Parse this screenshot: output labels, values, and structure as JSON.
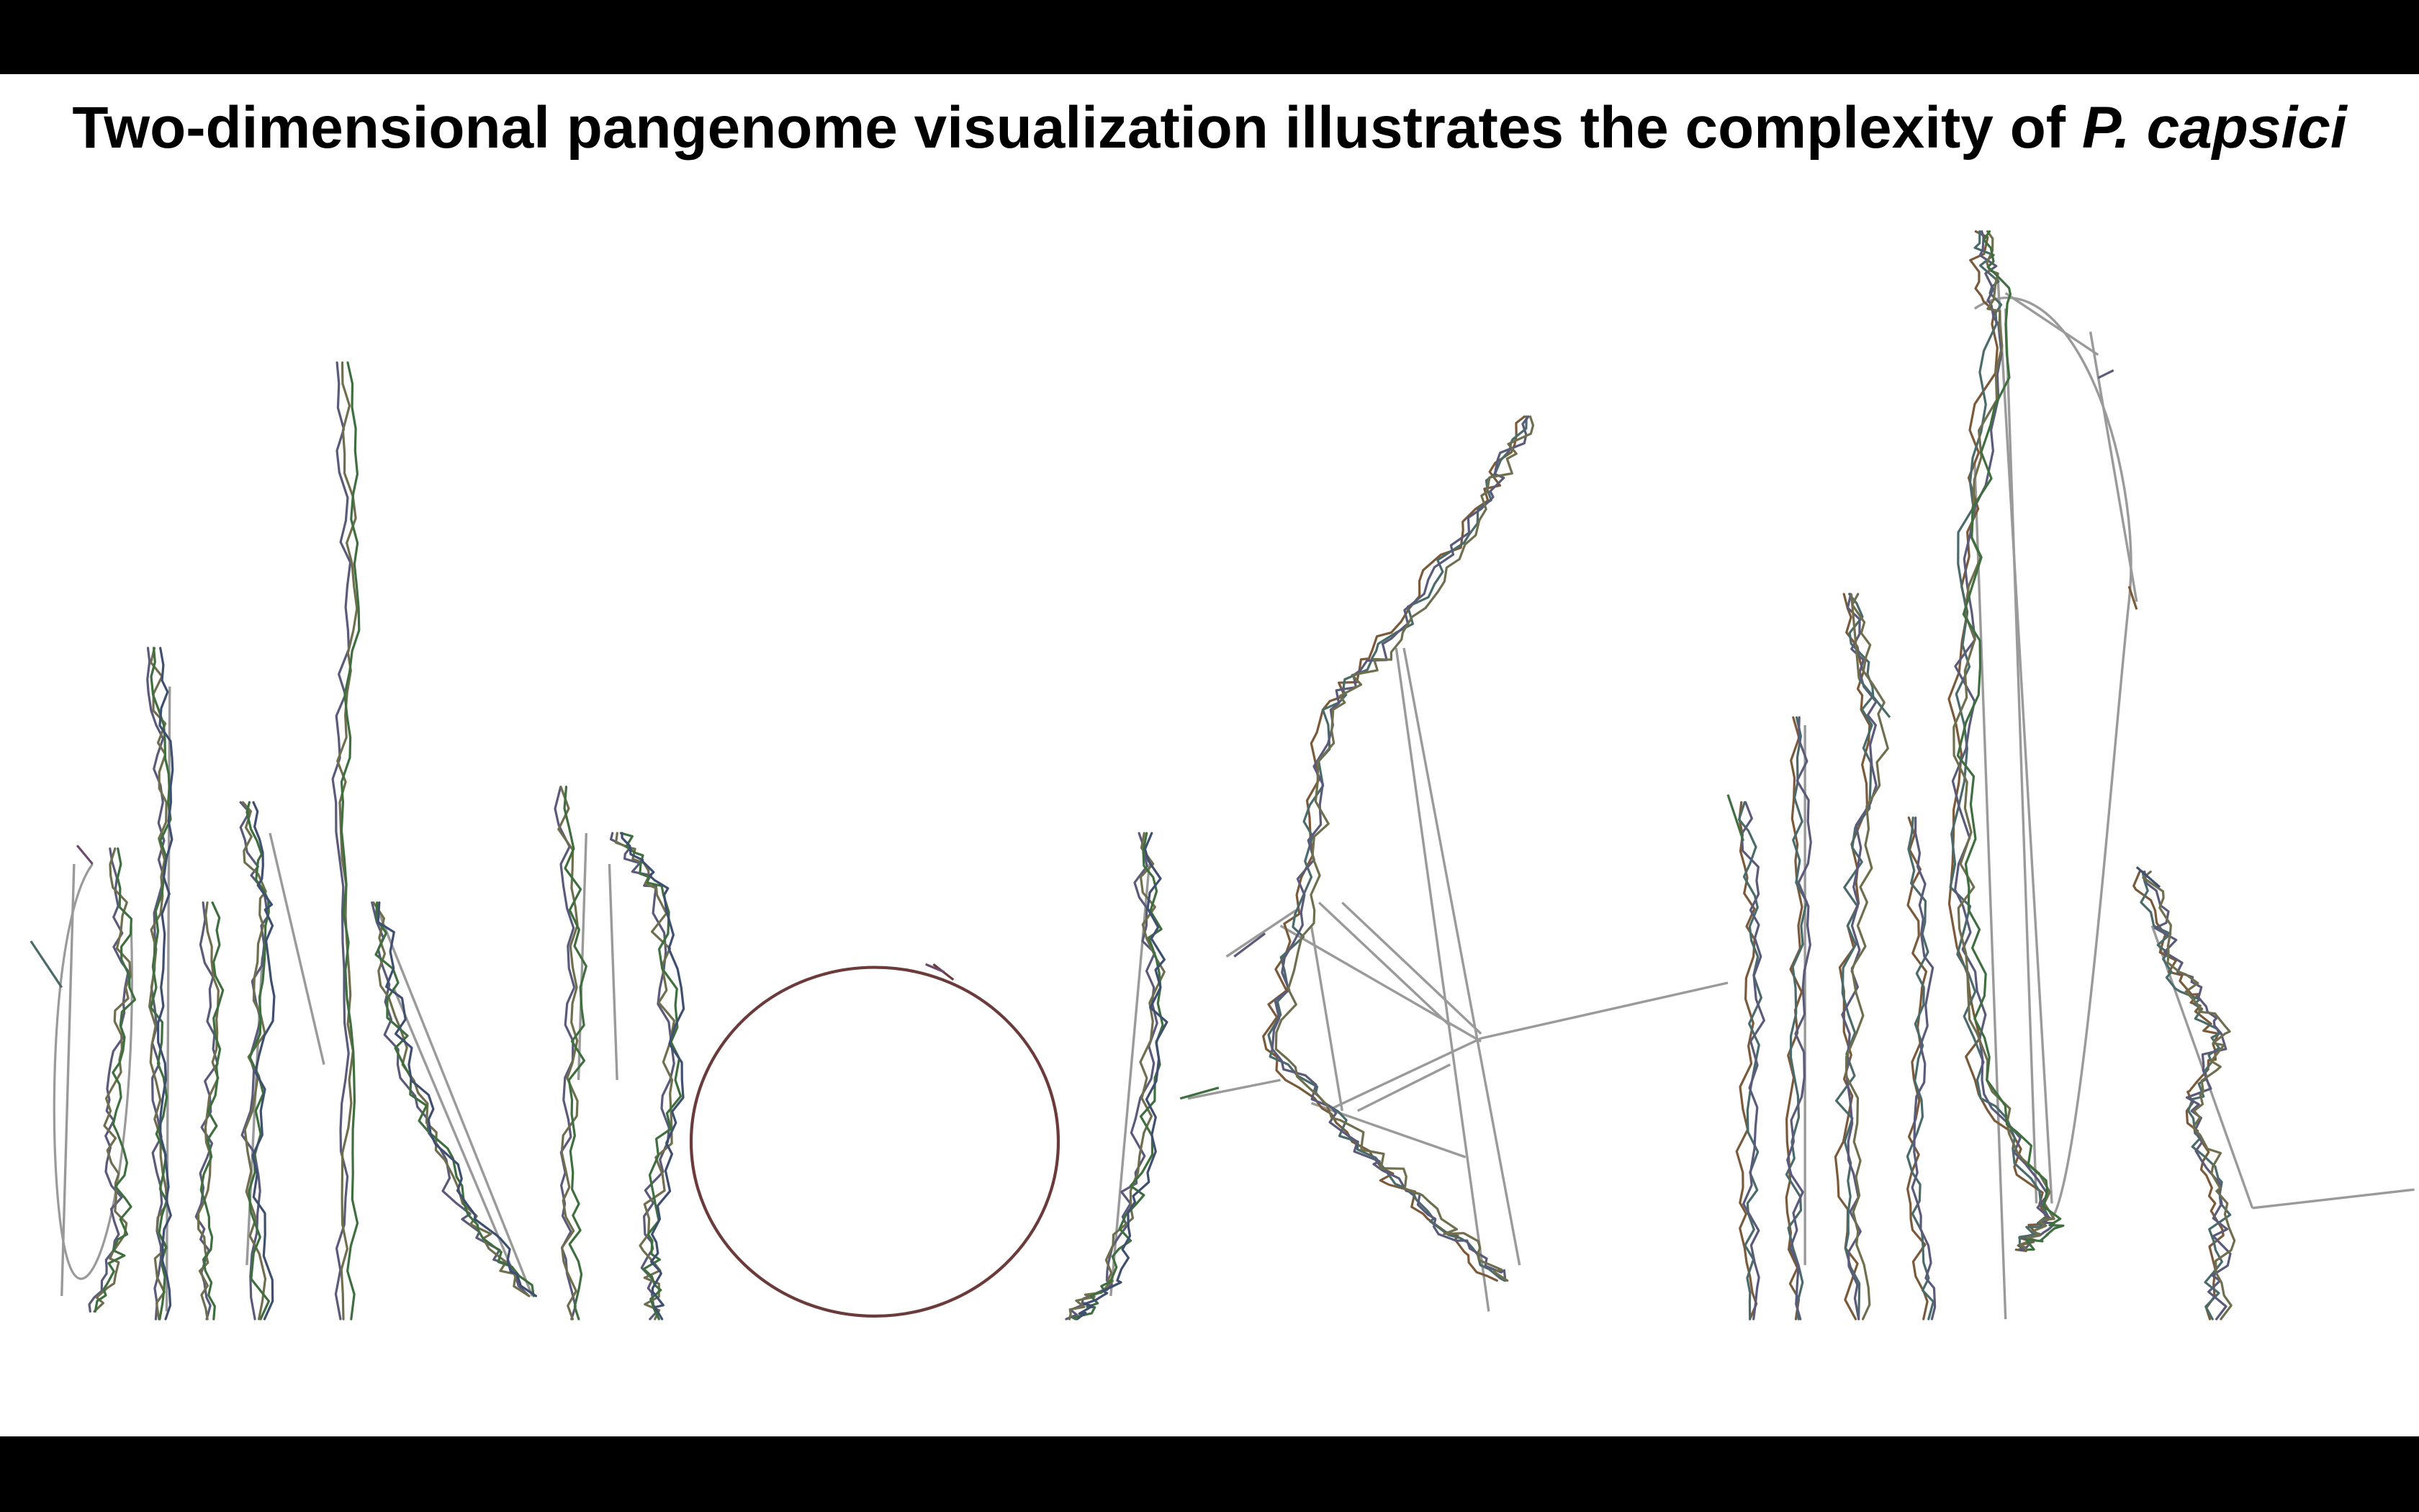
{
  "slide": {
    "title_main": "Two-dimensional pangenome visualization illustrates the complexity of ",
    "title_species": "P. capsici"
  },
  "colors": {
    "background": "#ffffff",
    "bars": "#000000",
    "title": "#000000",
    "link_lines": "#9a9a9a",
    "circle_component": "#6b3a3a",
    "node_palette": [
      "#4b6b6b",
      "#6b4a6b",
      "#3f6e3f",
      "#5a5a7a",
      "#7a5a3a",
      "#3f4f6f",
      "#6f6f4f"
    ]
  }
}
